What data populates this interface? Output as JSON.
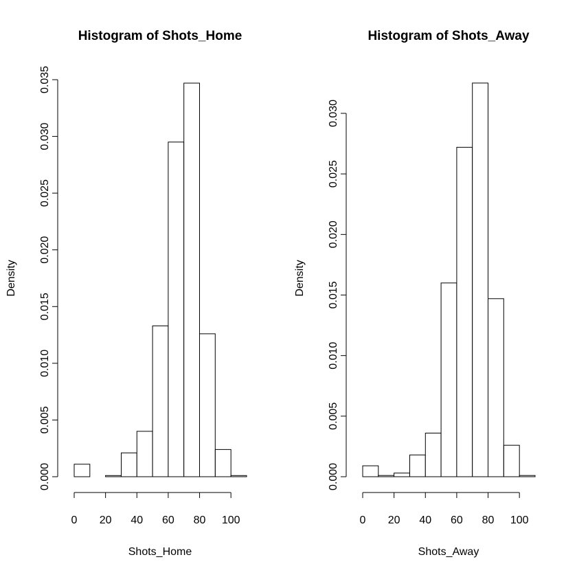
{
  "chart_data": [
    {
      "type": "bar",
      "title": "Histogram of Shots_Home",
      "xlabel": "Shots_Home",
      "ylabel": "Density",
      "bin_edges": [
        0,
        10,
        20,
        30,
        40,
        50,
        60,
        70,
        80,
        90,
        100,
        110
      ],
      "values": [
        0.0011,
        0.0,
        0.0001,
        0.0021,
        0.004,
        0.0133,
        0.0295,
        0.0347,
        0.0126,
        0.0024,
        0.0001
      ],
      "ylim": [
        0,
        0.035
      ],
      "xlim": [
        0,
        110
      ],
      "x_ticks": [
        0,
        20,
        40,
        60,
        80,
        100
      ],
      "x_tick_labels": [
        "0",
        "20",
        "40",
        "60",
        "80",
        "100"
      ],
      "y_ticks": [
        0,
        0.005,
        0.01,
        0.015,
        0.02,
        0.025,
        0.03,
        0.035
      ],
      "y_tick_labels": [
        "0.000",
        "0.005",
        "0.010",
        "0.015",
        "0.020",
        "0.025",
        "0.030",
        "0.035"
      ],
      "grid": false
    },
    {
      "type": "bar",
      "title": "Histogram of Shots_Away",
      "xlabel": "Shots_Away",
      "ylabel": "Density",
      "bin_edges": [
        0,
        10,
        20,
        30,
        40,
        50,
        60,
        70,
        80,
        90,
        100,
        110
      ],
      "values": [
        0.0009,
        0.0001,
        0.0003,
        0.0018,
        0.0036,
        0.016,
        0.0272,
        0.0325,
        0.0147,
        0.0026,
        0.0001
      ],
      "ylim": [
        0,
        0.033
      ],
      "xlim": [
        0,
        110
      ],
      "x_ticks": [
        0,
        20,
        40,
        60,
        80,
        100
      ],
      "x_tick_labels": [
        "0",
        "20",
        "40",
        "60",
        "80",
        "100"
      ],
      "y_ticks": [
        0,
        0.005,
        0.01,
        0.015,
        0.02,
        0.025,
        0.03
      ],
      "y_tick_labels": [
        "0.000",
        "0.005",
        "0.010",
        "0.015",
        "0.020",
        "0.025",
        "0.030"
      ],
      "grid": false
    }
  ]
}
